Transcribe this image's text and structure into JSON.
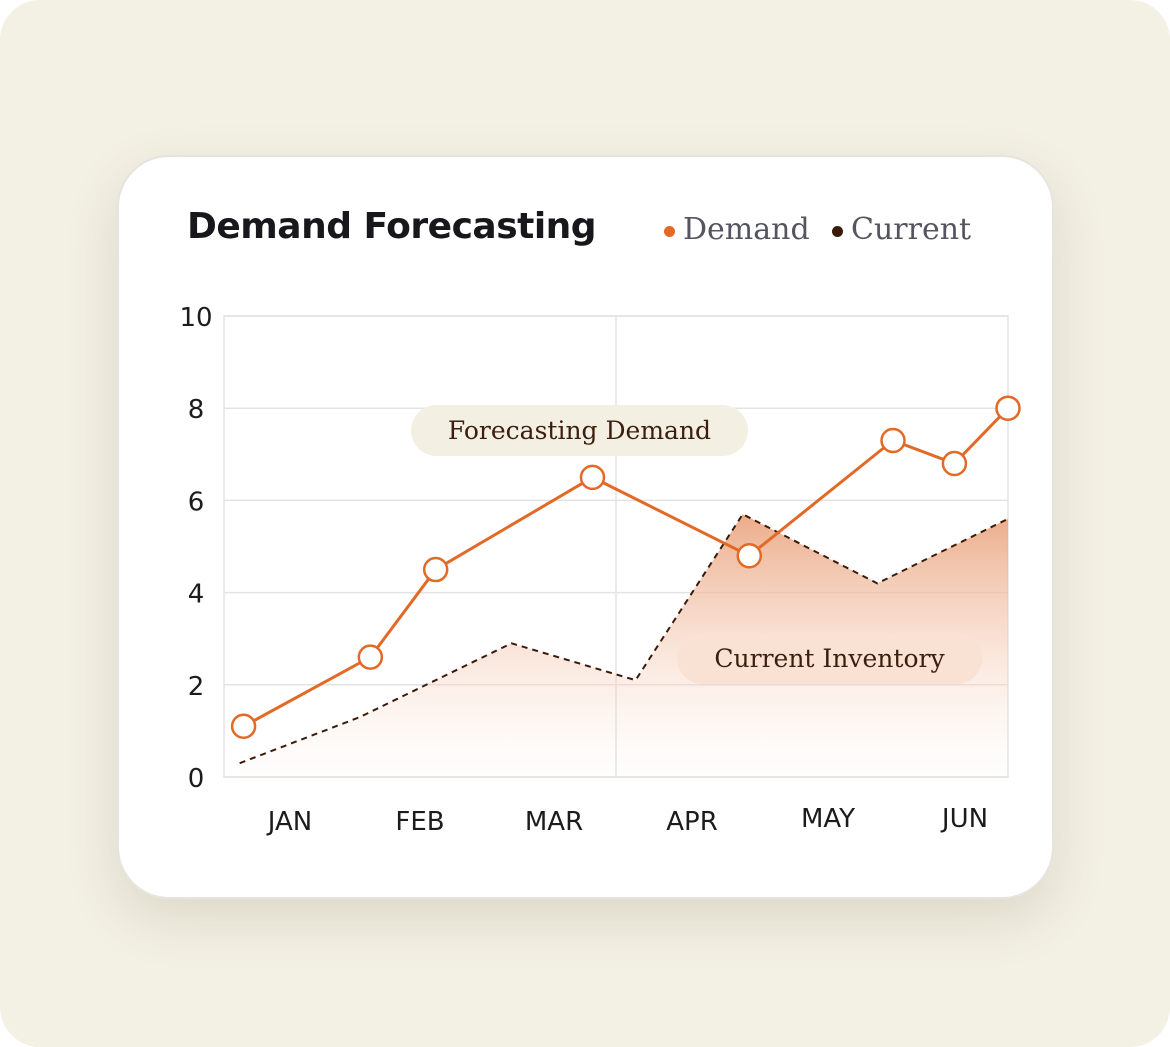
{
  "title": "Demand Forecasting",
  "legend": [
    {
      "label": "Demand",
      "color": "#e26a26"
    },
    {
      "label": "Current",
      "color": "#3b1a0a"
    }
  ],
  "annotations": {
    "demand": "Forecasting Demand",
    "current": "Current Inventory"
  },
  "chart_data": {
    "type": "line",
    "title": "Demand Forecasting",
    "x_categories": [
      "JAN",
      "FEB",
      "MAR",
      "APR",
      "MAY",
      "JUN"
    ],
    "x_range": [
      0,
      6
    ],
    "ylim": [
      0,
      10
    ],
    "y_ticks": [
      "0",
      "2",
      "4",
      "6",
      "8",
      "10"
    ],
    "grid": true,
    "legend_position": "top-right",
    "series": [
      {
        "name": "Demand",
        "color": "#e26a26",
        "style": "solid-with-markers",
        "x": [
          0.15,
          1.12,
          1.62,
          2.82,
          4.02,
          5.12,
          5.59,
          6.0
        ],
        "y": [
          1.1,
          2.6,
          4.5,
          6.5,
          4.8,
          7.3,
          6.8,
          8.0
        ]
      },
      {
        "name": "Current",
        "color": "#3b1a0a",
        "style": "dashed-area",
        "x": [
          0.12,
          1.04,
          2.2,
          3.15,
          3.97,
          5.0,
          6.0
        ],
        "y": [
          0.3,
          1.3,
          2.9,
          2.1,
          5.7,
          4.2,
          5.6
        ]
      }
    ]
  }
}
